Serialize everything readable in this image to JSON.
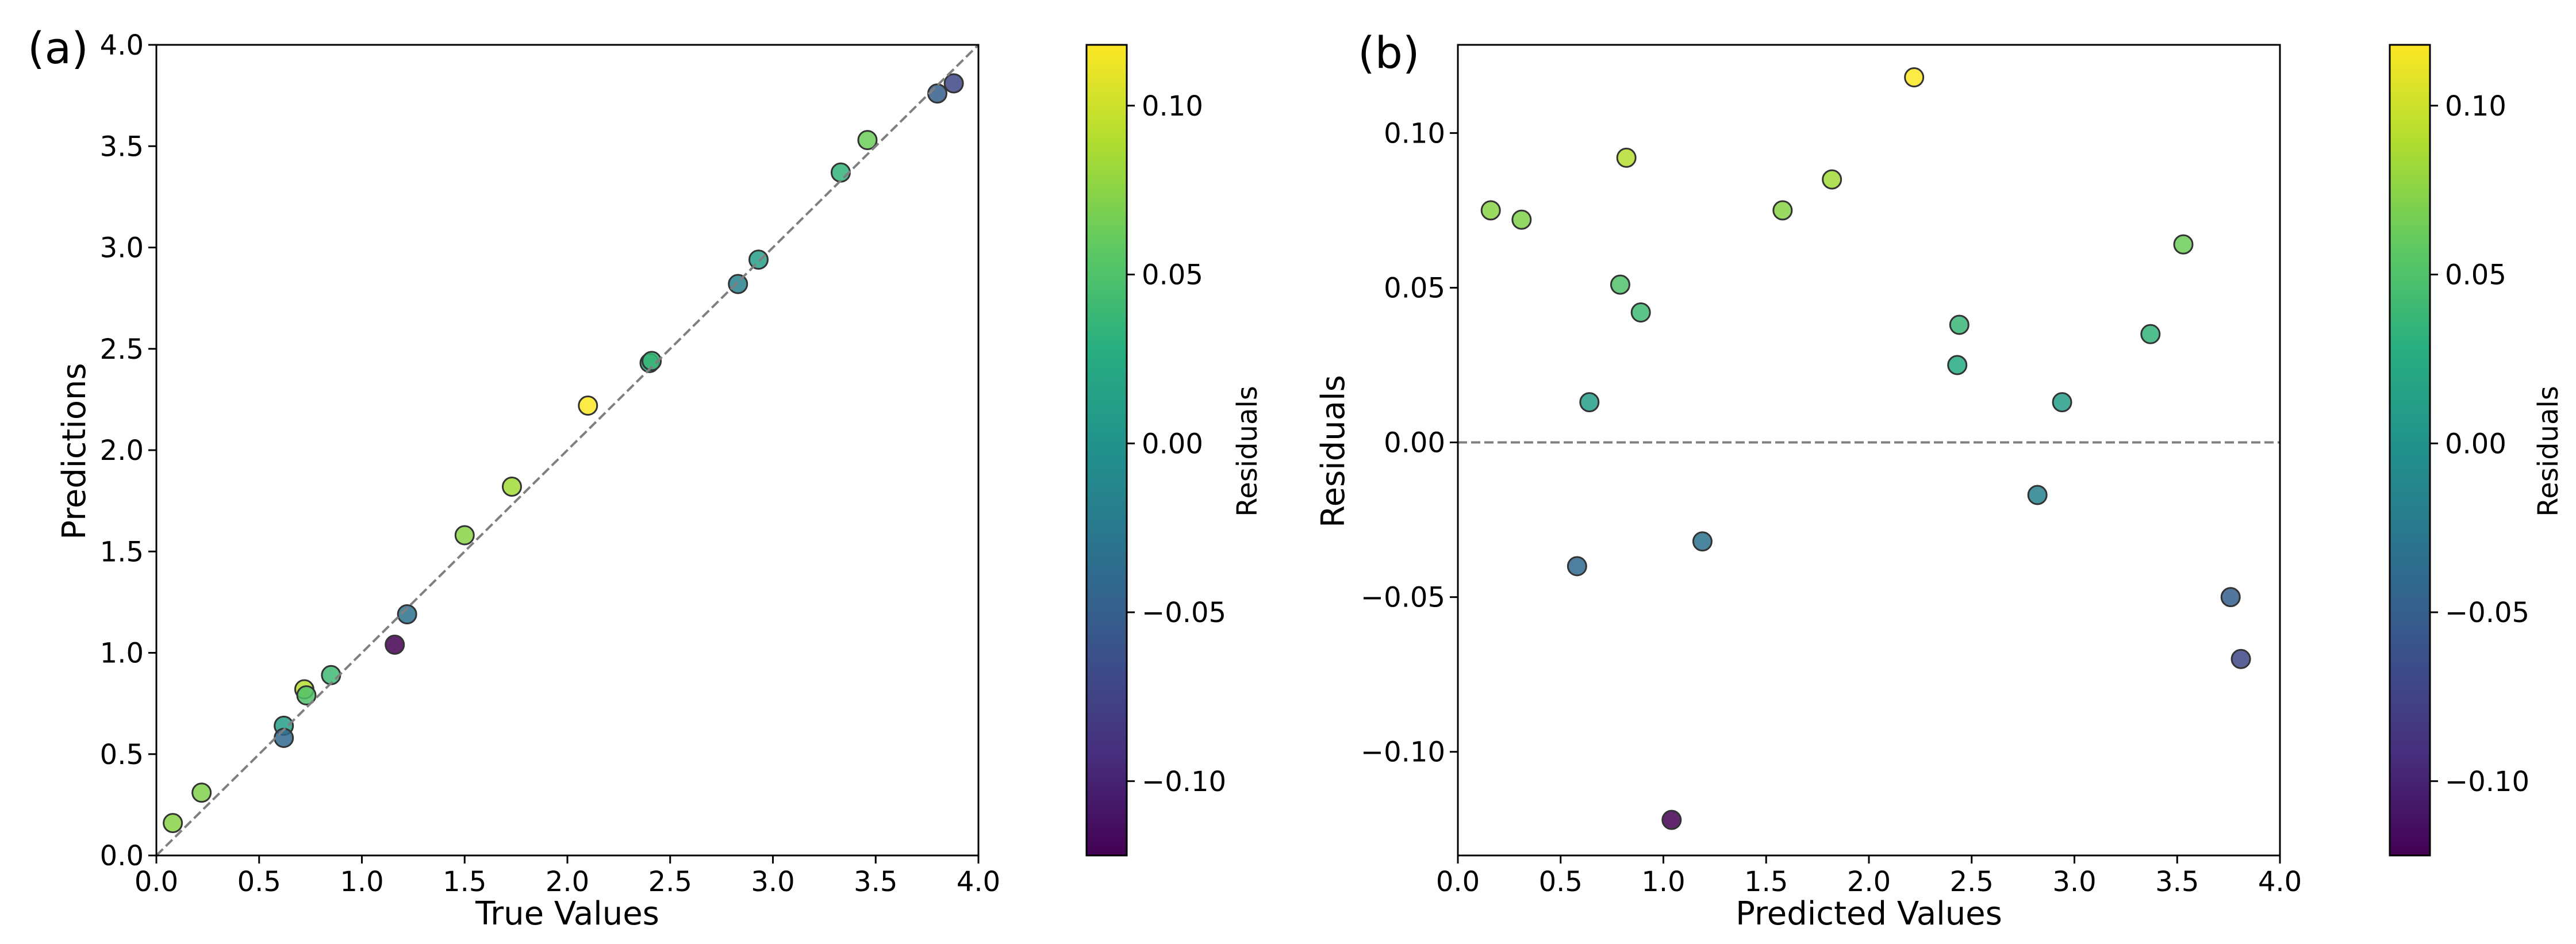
{
  "chart_data": [
    {
      "type": "scatter",
      "panel_label": "(a)",
      "xlabel": "True Values",
      "ylabel": "Predictions",
      "xlim": [
        0.0,
        4.0
      ],
      "ylim": [
        0.0,
        4.0
      ],
      "xticks": [
        "0.0",
        "0.5",
        "1.0",
        "1.5",
        "2.0",
        "2.5",
        "3.0",
        "3.5",
        "4.0"
      ],
      "yticks": [
        "0.0",
        "0.5",
        "1.0",
        "1.5",
        "2.0",
        "2.5",
        "3.0",
        "3.5",
        "4.0"
      ],
      "reference_line": "y = x (dashed, gray)",
      "grid": false,
      "colormap": "viridis",
      "colorbar": {
        "label": "Residuals",
        "range": [
          -0.122,
          0.118
        ],
        "ticks": [
          "−0.10",
          "−0.05",
          "0.00",
          "0.05",
          "0.10"
        ],
        "tick_values": [
          -0.1,
          -0.05,
          0.0,
          0.05,
          0.1
        ]
      },
      "points": [
        {
          "x": 0.08,
          "y": 0.16,
          "c": 0.075
        },
        {
          "x": 0.22,
          "y": 0.31,
          "c": 0.072
        },
        {
          "x": 0.62,
          "y": 0.64,
          "c": 0.013
        },
        {
          "x": 0.62,
          "y": 0.58,
          "c": -0.04
        },
        {
          "x": 0.72,
          "y": 0.82,
          "c": 0.092
        },
        {
          "x": 0.73,
          "y": 0.79,
          "c": 0.051
        },
        {
          "x": 0.85,
          "y": 0.89,
          "c": 0.042
        },
        {
          "x": 1.16,
          "y": 1.04,
          "c": -0.122
        },
        {
          "x": 1.22,
          "y": 1.19,
          "c": -0.032
        },
        {
          "x": 1.5,
          "y": 1.58,
          "c": 0.075
        },
        {
          "x": 1.73,
          "y": 1.82,
          "c": 0.085
        },
        {
          "x": 2.1,
          "y": 2.22,
          "c": 0.118
        },
        {
          "x": 2.4,
          "y": 2.43,
          "c": 0.025
        },
        {
          "x": 2.41,
          "y": 2.44,
          "c": 0.038
        },
        {
          "x": 2.83,
          "y": 2.82,
          "c": -0.017
        },
        {
          "x": 2.93,
          "y": 2.94,
          "c": 0.013
        },
        {
          "x": 3.33,
          "y": 3.37,
          "c": 0.035
        },
        {
          "x": 3.46,
          "y": 3.53,
          "c": 0.064
        },
        {
          "x": 3.8,
          "y": 3.76,
          "c": -0.05
        },
        {
          "x": 3.88,
          "y": 3.81,
          "c": -0.07
        }
      ]
    },
    {
      "type": "scatter",
      "panel_label": "(b)",
      "xlabel": "Predicted Values",
      "ylabel": "Residuals",
      "xlim": [
        0.0,
        4.0
      ],
      "ylim": [
        -0.1335,
        0.1285
      ],
      "xticks": [
        "0.0",
        "0.5",
        "1.0",
        "1.5",
        "2.0",
        "2.5",
        "3.0",
        "3.5",
        "4.0"
      ],
      "yticks": [
        "−0.10",
        "−0.05",
        "0.00",
        "0.05",
        "0.10"
      ],
      "ytick_values": [
        -0.1,
        -0.05,
        0.0,
        0.05,
        0.1
      ],
      "reference_line": "y = 0 (dashed, gray)",
      "grid": false,
      "colormap": "viridis",
      "colorbar": {
        "label": "Residuals",
        "range": [
          -0.122,
          0.118
        ],
        "ticks": [
          "−0.10",
          "−0.05",
          "0.00",
          "0.05",
          "0.10"
        ],
        "tick_values": [
          -0.1,
          -0.05,
          0.0,
          0.05,
          0.1
        ]
      },
      "points": [
        {
          "x": 0.16,
          "y": 0.075
        },
        {
          "x": 0.31,
          "y": 0.072
        },
        {
          "x": 0.58,
          "y": -0.04
        },
        {
          "x": 0.64,
          "y": 0.013
        },
        {
          "x": 0.79,
          "y": 0.051
        },
        {
          "x": 0.82,
          "y": 0.092
        },
        {
          "x": 0.89,
          "y": 0.042
        },
        {
          "x": 1.04,
          "y": -0.122
        },
        {
          "x": 1.19,
          "y": -0.032
        },
        {
          "x": 1.58,
          "y": 0.075
        },
        {
          "x": 1.82,
          "y": 0.085
        },
        {
          "x": 2.22,
          "y": 0.118
        },
        {
          "x": 2.43,
          "y": 0.025
        },
        {
          "x": 2.44,
          "y": 0.038
        },
        {
          "x": 2.82,
          "y": -0.017
        },
        {
          "x": 2.94,
          "y": 0.013
        },
        {
          "x": 3.37,
          "y": 0.035
        },
        {
          "x": 3.53,
          "y": 0.064
        },
        {
          "x": 3.76,
          "y": -0.05
        },
        {
          "x": 3.81,
          "y": -0.07
        }
      ]
    }
  ]
}
